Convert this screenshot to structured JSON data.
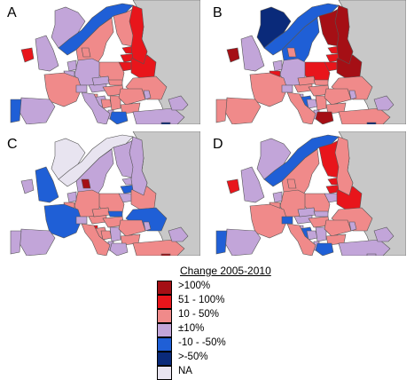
{
  "panels": [
    {
      "letter": "A"
    },
    {
      "letter": "B"
    },
    {
      "letter": "C"
    },
    {
      "letter": "D"
    }
  ],
  "colors": {
    "gt100": "#a50f15",
    "51_100": "#e8151b",
    "10_50": "#f08a8a",
    "pm10": "#c2a5d9",
    "neg10_50": "#1f5fd6",
    "gt_neg50": "#0a2a7a",
    "na": "#e8e4f0",
    "nodata": "#c8c8c8",
    "border": "#555555"
  },
  "legend": {
    "title": "Change 2005-2010",
    "items": [
      {
        "label": ">100%",
        "color": "#a50f15"
      },
      {
        "label": "51 - 100%",
        "color": "#e8151b"
      },
      {
        "label": "10 - 50%",
        "color": "#f08a8a"
      },
      {
        "label": "±10%",
        "color": "#c2a5d9"
      },
      {
        "label": "-10 - -50%",
        "color": "#1f5fd6"
      },
      {
        "label": ">-50%",
        "color": "#0a2a7a"
      },
      {
        "label": "NA",
        "color": "#e8e4f0"
      }
    ]
  },
  "maps": {
    "A": {
      "ic": "pm10",
      "ie": "51_100",
      "uk": "pm10",
      "pt": "neg10_50",
      "es": "pm10",
      "fr": "10_50",
      "be": "pm10",
      "nl": "pm10",
      "de": "pm10",
      "dk": "10_50",
      "no": "neg10_50",
      "se": "10_50",
      "fi": "10_50",
      "ee": "51_100",
      "lv": "51_100",
      "lt": "51_100",
      "ru": "51_100",
      "pl": "10_50",
      "cz": "pm10",
      "at": "pm10",
      "ch": "pm10",
      "it": "pm10",
      "si": "10_50",
      "hr": "pm10",
      "ba": "10_50",
      "rs": "10_50",
      "hu": "10_50",
      "sk": "10_50",
      "ro": "10_50",
      "bg": "10_50",
      "gr": "neg10_50",
      "al": "pm10",
      "ua": "10_50",
      "by": "51_100",
      "md": "pm10",
      "tr": "pm10",
      "cy": "gt_neg50",
      "cauc": "pm10"
    },
    "B": {
      "ic": "gt_neg50",
      "ie": "gt100",
      "uk": "pm10",
      "pt": "10_50",
      "es": "10_50",
      "fr": "10_50",
      "be": "51_100",
      "nl": "pm10",
      "de": "pm10",
      "dk": "10_50",
      "no": "neg10_50",
      "se": "neg10_50",
      "fi": "gt100",
      "ee": "51_100",
      "lv": "51_100",
      "lt": "51_100",
      "ru": "gt100",
      "pl": "51_100",
      "cz": "10_50",
      "at": "10_50",
      "ch": "pm10",
      "it": "10_50",
      "si": "pm10",
      "hr": "neg10_50",
      "ba": "pm10",
      "rs": "10_50",
      "hu": "10_50",
      "sk": "10_50",
      "ro": "10_50",
      "bg": "10_50",
      "gr": "gt100",
      "al": "pm10",
      "ua": "10_50",
      "by": "gt100",
      "md": "pm10",
      "tr": "10_50",
      "cy": "gt_neg50",
      "cauc": "pm10"
    },
    "C": {
      "ic": "na",
      "ie": "pm10",
      "uk": "neg10_50",
      "pt": "pm10",
      "es": "pm10",
      "fr": "neg10_50",
      "be": "10_50",
      "nl": "pm10",
      "de": "10_50",
      "dk": "gt100",
      "no": "na",
      "se": "pm10",
      "fi": "pm10",
      "ee": "pm10",
      "lv": "neg10_50",
      "lt": "pm10",
      "ru": "pm10",
      "pl": "10_50",
      "cz": "10_50",
      "at": "10_50",
      "ch": "pm10",
      "it": "10_50",
      "si": "51_100",
      "hr": "10_50",
      "ba": "10_50",
      "rs": "pm10",
      "hu": "10_50",
      "sk": "neg10_50",
      "ro": "10_50",
      "bg": "10_50",
      "gr": "pm10",
      "al": "pm10",
      "ua": "neg10_50",
      "by": "10_50",
      "md": "pm10",
      "tr": "10_50",
      "cy": "gt100",
      "cauc": "pm10"
    },
    "D": {
      "ic": "pm10",
      "ie": "51_100",
      "uk": "pm10",
      "pt": "neg10_50",
      "es": "pm10",
      "fr": "10_50",
      "be": "10_50",
      "nl": "pm10",
      "de": "10_50",
      "dk": "10_50",
      "no": "neg10_50",
      "se": "10_50",
      "fi": "51_100",
      "ee": "51_100",
      "lv": "51_100",
      "lt": "pm10",
      "ru": "10_50",
      "pl": "10_50",
      "cz": "pm10",
      "at": "pm10",
      "ch": "neg10_50",
      "it": "10_50",
      "si": "pm10",
      "hr": "neg10_50",
      "ba": "pm10",
      "rs": "pm10",
      "hu": "10_50",
      "sk": "pm10",
      "ro": "10_50",
      "bg": "10_50",
      "gr": "neg10_50",
      "al": "pm10",
      "ua": "10_50",
      "by": "51_100",
      "md": "pm10",
      "tr": "pm10",
      "cy": "pm10",
      "cauc": "pm10"
    }
  }
}
